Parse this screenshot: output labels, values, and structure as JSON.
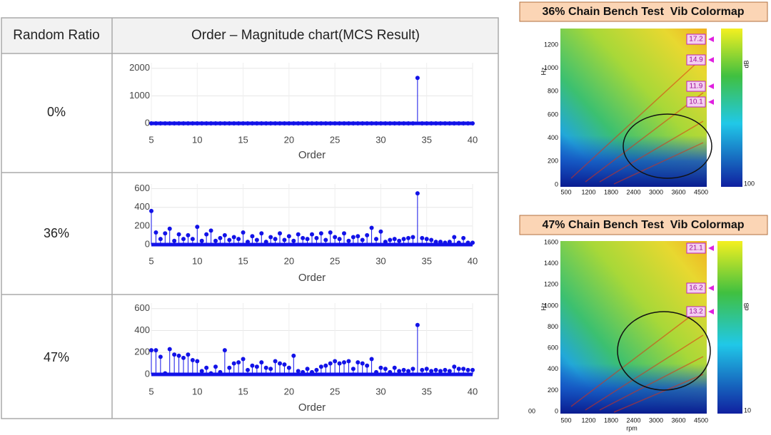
{
  "table": {
    "header": [
      "Random Ratio",
      "Order – Magnitude chart(MCS Result)"
    ],
    "rows": [
      [
        "0%"
      ],
      [
        "36%"
      ],
      [
        "47%"
      ]
    ]
  },
  "chart_data": [
    {
      "type": "stem",
      "color": "#1212e8",
      "x_label": "Order",
      "grid": true,
      "xlim": [
        5,
        40
      ],
      "xticks": [
        5,
        10,
        15,
        20,
        25,
        30,
        35,
        40
      ],
      "ylim": [
        0,
        2200
      ],
      "yticks": [
        0,
        1000,
        2000
      ],
      "x": [
        5,
        5.5,
        6,
        6.5,
        7,
        7.5,
        8,
        8.5,
        9,
        9.5,
        10,
        10.5,
        11,
        11.5,
        12,
        12.5,
        13,
        13.5,
        14,
        14.5,
        15,
        15.5,
        16,
        16.5,
        17,
        17.5,
        18,
        18.5,
        19,
        19.5,
        20,
        20.5,
        21,
        21.5,
        22,
        22.5,
        23,
        23.5,
        24,
        24.5,
        25,
        25.5,
        26,
        26.5,
        27,
        27.5,
        28,
        28.5,
        29,
        29.5,
        30,
        30.5,
        31,
        31.5,
        32,
        32.5,
        33,
        33.5,
        34,
        34.5,
        35,
        35.5,
        36,
        36.5,
        37,
        37.5,
        38,
        38.5,
        39,
        39.5,
        40
      ],
      "values": [
        0,
        0,
        0,
        0,
        0,
        0,
        0,
        0,
        0,
        0,
        0,
        0,
        0,
        0,
        0,
        0,
        0,
        0,
        0,
        0,
        0,
        0,
        0,
        0,
        0,
        0,
        0,
        0,
        0,
        0,
        0,
        0,
        0,
        0,
        0,
        0,
        0,
        0,
        0,
        0,
        0,
        0,
        0,
        0,
        0,
        0,
        0,
        0,
        0,
        0,
        0,
        0,
        0,
        0,
        0,
        0,
        0,
        0,
        1650,
        0,
        0,
        0,
        0,
        0,
        0,
        0,
        0,
        0,
        0,
        0,
        0
      ]
    },
    {
      "type": "stem",
      "color": "#1212e8",
      "x_label": "Order",
      "grid": true,
      "xlim": [
        5,
        40
      ],
      "xticks": [
        5,
        10,
        15,
        20,
        25,
        30,
        35,
        40
      ],
      "ylim": [
        0,
        650
      ],
      "yticks": [
        0,
        200,
        400,
        600
      ],
      "x": [
        5,
        5.5,
        6,
        6.5,
        7,
        7.5,
        8,
        8.5,
        9,
        9.5,
        10,
        10.5,
        11,
        11.5,
        12,
        12.5,
        13,
        13.5,
        14,
        14.5,
        15,
        15.5,
        16,
        16.5,
        17,
        17.5,
        18,
        18.5,
        19,
        19.5,
        20,
        20.5,
        21,
        21.5,
        22,
        22.5,
        23,
        23.5,
        24,
        24.5,
        25,
        25.5,
        26,
        26.5,
        27,
        27.5,
        28,
        28.5,
        29,
        29.5,
        30,
        30.5,
        31,
        31.5,
        32,
        32.5,
        33,
        33.5,
        34,
        34.5,
        35,
        35.5,
        36,
        36.5,
        37,
        37.5,
        38,
        38.5,
        39,
        39.5,
        40
      ],
      "values": [
        360,
        130,
        60,
        120,
        170,
        40,
        110,
        60,
        100,
        60,
        190,
        40,
        110,
        150,
        40,
        70,
        100,
        50,
        80,
        60,
        130,
        30,
        90,
        50,
        120,
        30,
        80,
        60,
        120,
        50,
        90,
        40,
        110,
        70,
        60,
        110,
        70,
        120,
        50,
        130,
        80,
        60,
        120,
        40,
        80,
        90,
        50,
        100,
        180,
        60,
        140,
        30,
        50,
        60,
        40,
        60,
        70,
        80,
        550,
        70,
        60,
        50,
        30,
        30,
        20,
        30,
        80,
        20,
        70,
        20,
        20
      ]
    },
    {
      "type": "stem",
      "color": "#1212e8",
      "x_label": "Order",
      "grid": true,
      "xlim": [
        5,
        40
      ],
      "xticks": [
        5,
        10,
        15,
        20,
        25,
        30,
        35,
        40
      ],
      "ylim": [
        0,
        650
      ],
      "yticks": [
        0,
        200,
        400,
        600
      ],
      "x": [
        5,
        5.5,
        6,
        6.5,
        7,
        7.5,
        8,
        8.5,
        9,
        9.5,
        10,
        10.5,
        11,
        11.5,
        12,
        12.5,
        13,
        13.5,
        14,
        14.5,
        15,
        15.5,
        16,
        16.5,
        17,
        17.5,
        18,
        18.5,
        19,
        19.5,
        20,
        20.5,
        21,
        21.5,
        22,
        22.5,
        23,
        23.5,
        24,
        24.5,
        25,
        25.5,
        26,
        26.5,
        27,
        27.5,
        28,
        28.5,
        29,
        29.5,
        30,
        30.5,
        31,
        31.5,
        32,
        32.5,
        33,
        33.5,
        34,
        34.5,
        35,
        35.5,
        36,
        36.5,
        37,
        37.5,
        38,
        38.5,
        39,
        39.5,
        40
      ],
      "values": [
        220,
        220,
        160,
        10,
        230,
        180,
        170,
        150,
        180,
        130,
        120,
        30,
        60,
        10,
        70,
        20,
        220,
        60,
        100,
        110,
        140,
        40,
        80,
        70,
        110,
        60,
        50,
        120,
        100,
        90,
        60,
        170,
        30,
        20,
        50,
        20,
        40,
        70,
        80,
        100,
        120,
        100,
        110,
        120,
        50,
        110,
        100,
        80,
        140,
        20,
        60,
        50,
        20,
        60,
        30,
        40,
        30,
        50,
        450,
        40,
        50,
        30,
        40,
        30,
        40,
        30,
        70,
        50,
        50,
        40,
        40
      ]
    }
  ],
  "colormaps": [
    {
      "title": "36% Chain Bench Test  Vib Colormap",
      "y_label": "Hz",
      "yticks": [
        "0",
        "200",
        "400",
        "600",
        "800",
        "1000",
        "1200"
      ],
      "xticks": [
        "500",
        "1200",
        "1800",
        "2400",
        "3000",
        "3600",
        "4500"
      ],
      "markers": [
        "17.2",
        "14.9",
        "11.9",
        "10.1"
      ],
      "colorbar_label": "dB",
      "colorbar_min": "100"
    },
    {
      "title": "47% Chain Bench Test  Vib Colormap",
      "y_label": "Hz",
      "yticks": [
        "0",
        "200",
        "400",
        "600",
        "800",
        "1000",
        "1200",
        "1400",
        "1600"
      ],
      "xticks": [
        "500",
        "1200",
        "1800",
        "2400",
        "3000",
        "3600",
        "4500"
      ],
      "x_label": "rpm",
      "corner_label": "00",
      "markers": [
        "21.1",
        "16.2",
        "13.2"
      ],
      "colorbar_label": "dB",
      "colorbar_min": "10"
    }
  ]
}
